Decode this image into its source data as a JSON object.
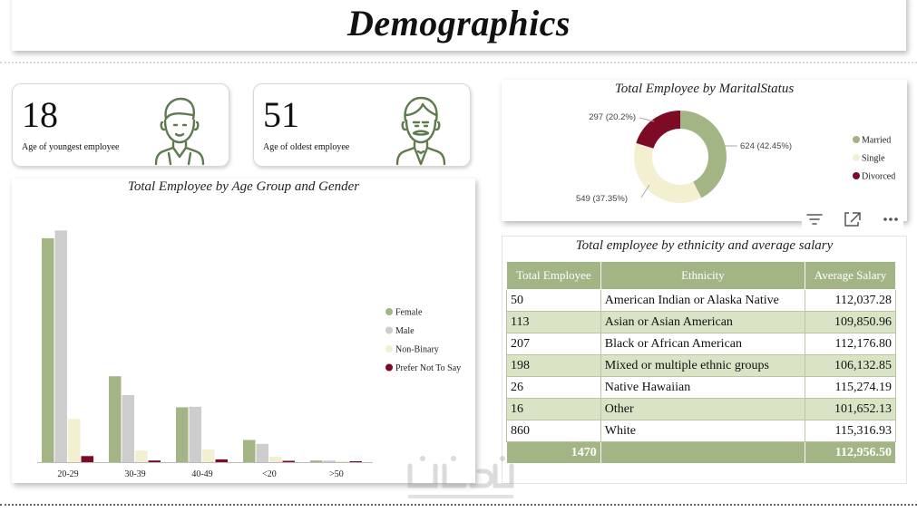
{
  "page": {
    "title": "Demographics"
  },
  "kpis": {
    "youngest": {
      "value": "18",
      "label": "Age of youngest employee",
      "icon": "man-icon"
    },
    "oldest": {
      "value": "51",
      "label": "Age of oldest employee",
      "icon": "old-man-icon"
    }
  },
  "colors": {
    "female": "#a4b585",
    "male": "#cdcdcd",
    "non_binary": "#f3f0d2",
    "prefer_not": "#7e0b26",
    "married": "#a4b585",
    "single": "#f3f0d2",
    "divorced": "#7e0b26"
  },
  "age_chart": {
    "title": "Total Employee by Age Group and Gender",
    "legend": [
      "Female",
      "Male",
      "Non-Binary",
      "Prefer Not To Say"
    ]
  },
  "marital_chart": {
    "title": "Total Employee by MaritalStatus",
    "labels": {
      "married": "624 (42.45%)",
      "single": "549 (37.35%)",
      "divorced": "297 (20.2%)"
    },
    "legend": [
      "Married",
      "Single",
      "Divorced"
    ]
  },
  "ethnicity_table": {
    "title": "Total employee by ethnicity and average salary",
    "headers": [
      "Total Employee",
      "Ethnicity",
      "Average Salary"
    ],
    "rows": [
      [
        "50",
        "American Indian or Alaska Native",
        "112,037.28"
      ],
      [
        "113",
        "Asian or Asian American",
        "109,850.96"
      ],
      [
        "207",
        "Black or African American",
        "112,176.80"
      ],
      [
        "198",
        "Mixed or multiple ethnic groups",
        "106,132.85"
      ],
      [
        "26",
        "Native Hawaiian",
        "115,274.19"
      ],
      [
        "16",
        "Other",
        "101,652.13"
      ],
      [
        "860",
        "White",
        "115,316.93"
      ]
    ],
    "total": [
      "1470",
      "",
      "112,956.50"
    ]
  },
  "toolbar": {
    "icons": [
      "filter-icon",
      "focus-mode-icon",
      "more-options-icon"
    ]
  },
  "chart_data": [
    {
      "type": "bar",
      "title": "Total Employee by Age Group and Gender",
      "categories": [
        "20-29",
        "30-39",
        "40-49",
        "<20",
        ">50"
      ],
      "series": [
        {
          "name": "Female",
          "values": [
            404,
            155,
            99,
            40,
            3
          ]
        },
        {
          "name": "Male",
          "values": [
            418,
            121,
            100,
            33,
            3
          ]
        },
        {
          "name": "Non-Binary",
          "values": [
            78,
            21,
            23,
            10,
            1
          ]
        },
        {
          "name": "Prefer Not To Say",
          "values": [
            11,
            3,
            5,
            2,
            0
          ]
        }
      ],
      "legend_position": "right",
      "grid": false
    },
    {
      "type": "pie",
      "title": "Total Employee by MaritalStatus",
      "donut": true,
      "slices": [
        {
          "name": "Married",
          "value": 624,
          "label": "624 (42.45%)"
        },
        {
          "name": "Single",
          "value": 549,
          "label": "549 (37.35%)"
        },
        {
          "name": "Divorced",
          "value": 297,
          "label": "297 (20.2%)"
        }
      ],
      "legend_position": "right"
    }
  ]
}
